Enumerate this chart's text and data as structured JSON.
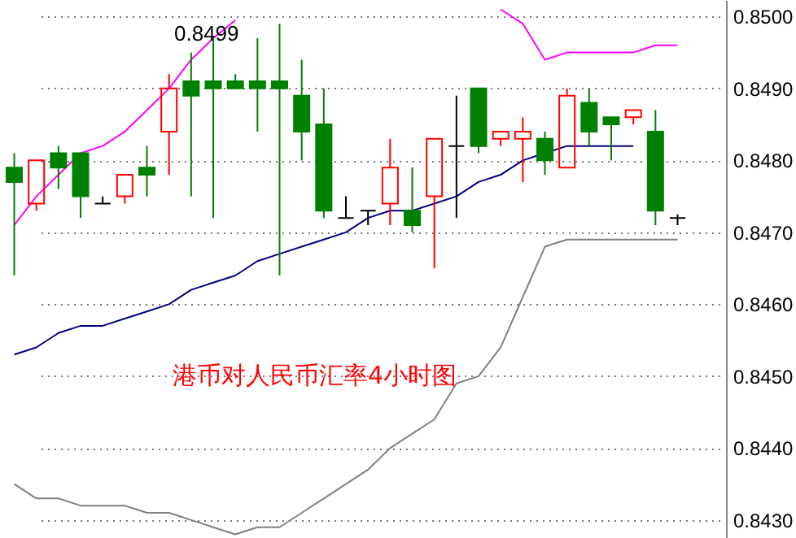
{
  "chart_data": {
    "type": "candlestick",
    "title": "港币对人民币汇率4小时图",
    "categories": [
      null,
      null,
      null,
      null,
      null,
      null,
      null,
      null,
      null,
      null,
      null,
      null,
      null,
      null,
      null,
      null,
      null,
      null,
      null,
      null,
      null,
      null,
      null,
      null,
      null,
      null,
      null,
      null,
      null,
      null,
      null
    ],
    "ohlc": [
      [
        0.8479,
        0.8481,
        0.8464,
        0.8477
      ],
      [
        0.8474,
        0.848,
        0.8473,
        0.848
      ],
      [
        0.8481,
        0.8482,
        0.8476,
        0.8479
      ],
      [
        0.8481,
        0.8481,
        0.8472,
        0.8475
      ],
      [
        0.8474,
        0.8475,
        0.8474,
        0.8474
      ],
      [
        0.8475,
        0.8478,
        0.8474,
        0.8478
      ],
      [
        0.8479,
        0.8482,
        0.8475,
        0.8478
      ],
      [
        0.8484,
        0.8492,
        0.8478,
        0.849
      ],
      [
        0.8491,
        0.8495,
        0.8475,
        0.8489
      ],
      [
        0.8491,
        0.8497,
        0.8472,
        0.849
      ],
      [
        0.8491,
        0.8492,
        0.849,
        0.849
      ],
      [
        0.8491,
        0.8497,
        0.8484,
        0.849
      ],
      [
        0.8491,
        0.8499,
        0.8464,
        0.849
      ],
      [
        0.8489,
        0.8494,
        0.848,
        0.8484
      ],
      [
        0.8485,
        0.849,
        0.8472,
        0.8473
      ],
      [
        0.8472,
        0.8475,
        0.8472,
        0.8472
      ],
      [
        0.8473,
        0.8473,
        0.8471,
        0.8473
      ],
      [
        0.8474,
        0.8483,
        0.8471,
        0.8479
      ],
      [
        0.8473,
        0.8479,
        0.847,
        0.8471
      ],
      [
        0.8475,
        0.8483,
        0.8465,
        0.8483
      ],
      [
        0.8482,
        0.8489,
        0.8472,
        0.8482
      ],
      [
        0.849,
        0.849,
        0.8481,
        0.8482
      ],
      [
        0.8483,
        0.8484,
        0.8482,
        0.8484
      ],
      [
        0.8483,
        0.8486,
        0.8477,
        0.8484
      ],
      [
        0.8483,
        0.8484,
        0.8478,
        0.848
      ],
      [
        0.8479,
        0.849,
        0.8479,
        0.8489
      ],
      [
        0.8488,
        0.849,
        0.8482,
        0.8484
      ],
      [
        0.8486,
        0.8486,
        0.848,
        0.8485
      ],
      [
        0.8486,
        0.8487,
        0.8485,
        0.8487
      ],
      [
        0.8484,
        0.8487,
        0.8471,
        0.8473
      ],
      [
        0.8472,
        0.84725,
        0.8471,
        0.8472
      ]
    ],
    "series": [
      {
        "type": "line",
        "color": "#ff00ff",
        "values": [
          0.8471,
          0.8475,
          0.8478,
          0.8481,
          0.8482,
          0.8484,
          0.8487,
          0.849,
          0.8494,
          0.8497,
          0.84995,
          null,
          null,
          null,
          null,
          null,
          null,
          null,
          null,
          null,
          null,
          null,
          0.8501,
          0.8499,
          0.8494,
          0.8495,
          0.8495,
          0.8495,
          0.8495,
          0.8496,
          0.8496
        ]
      },
      {
        "type": "line",
        "color": "#000080",
        "values": [
          0.8453,
          0.8454,
          0.8456,
          0.8457,
          0.8457,
          0.8458,
          0.8459,
          0.846,
          0.8462,
          0.8463,
          0.8464,
          0.8466,
          0.8467,
          0.8468,
          0.8469,
          0.847,
          0.8472,
          0.8473,
          0.8473,
          0.8474,
          0.8475,
          0.8477,
          0.8478,
          0.848,
          0.8481,
          0.8482,
          0.8482,
          0.8482,
          0.8482,
          null,
          null
        ]
      },
      {
        "type": "line",
        "color": "#808080",
        "values": [
          0.8435,
          0.8433,
          0.8433,
          0.8432,
          0.8432,
          0.8432,
          0.8431,
          0.8431,
          0.843,
          0.8429,
          0.8428,
          0.8429,
          0.8429,
          0.8431,
          0.8433,
          0.8435,
          0.8437,
          0.844,
          0.8442,
          0.8444,
          0.8449,
          0.845,
          0.8454,
          0.8461,
          0.8468,
          0.8469,
          0.8469,
          0.8469,
          0.8469,
          0.8469,
          0.8469
        ]
      }
    ],
    "annotations": [
      "0.8499"
    ],
    "ylim": [
      0.84275,
      0.85023
    ],
    "yticks": [
      {
        "value": 0.843,
        "label": "0.8430"
      },
      {
        "value": 0.844,
        "label": "0.8440"
      },
      {
        "value": 0.845,
        "label": "0.8450"
      },
      {
        "value": 0.846,
        "label": "0.8460"
      },
      {
        "value": 0.847,
        "label": "0.8470"
      },
      {
        "value": 0.848,
        "label": "0.8480"
      },
      {
        "value": 0.849,
        "label": "0.8490"
      },
      {
        "value": 0.85,
        "label": "0.8500"
      }
    ],
    "grid": "y",
    "tick_labels": "y"
  }
}
